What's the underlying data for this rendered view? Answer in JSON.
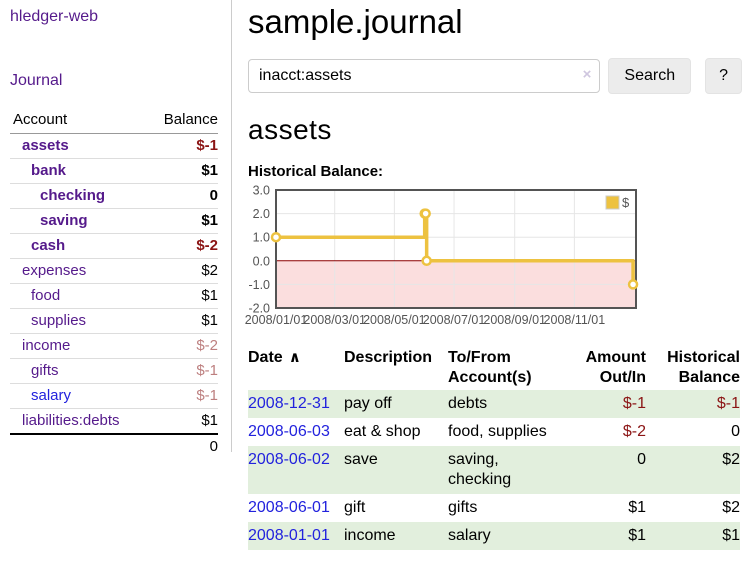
{
  "sidebar": {
    "app_title": "hledger-web",
    "journal_link": "Journal",
    "accounts": {
      "header_account": "Account",
      "header_balance": "Balance",
      "rows": [
        {
          "name": "assets",
          "indent": 0,
          "bold": true,
          "link_color": "purple",
          "balance": "$-1",
          "balance_style": "negative"
        },
        {
          "name": "bank",
          "indent": 1,
          "bold": true,
          "link_color": "purple",
          "balance": "$1",
          "balance_style": "normal"
        },
        {
          "name": "checking",
          "indent": 2,
          "bold": true,
          "link_color": "purple",
          "balance": "0",
          "balance_style": "normal"
        },
        {
          "name": "saving",
          "indent": 2,
          "bold": true,
          "link_color": "purple",
          "balance": "$1",
          "balance_style": "normal"
        },
        {
          "name": "cash",
          "indent": 1,
          "bold": true,
          "link_color": "purple",
          "balance": "$-2",
          "balance_style": "negative"
        },
        {
          "name": "expenses",
          "indent": 0,
          "bold": false,
          "link_color": "purple",
          "balance": "$2",
          "balance_style": "normal"
        },
        {
          "name": "food",
          "indent": 1,
          "bold": false,
          "link_color": "purple",
          "balance": "$1",
          "balance_style": "normal"
        },
        {
          "name": "supplies",
          "indent": 1,
          "bold": false,
          "link_color": "purple",
          "balance": "$1",
          "balance_style": "normal"
        },
        {
          "name": "income",
          "indent": 0,
          "bold": false,
          "link_color": "purple",
          "balance": "$-2",
          "balance_style": "faded-negative"
        },
        {
          "name": "gifts",
          "indent": 1,
          "bold": false,
          "link_color": "purple",
          "balance": "$-1",
          "balance_style": "faded-negative"
        },
        {
          "name": "salary",
          "indent": 1,
          "bold": false,
          "link_color": "blue",
          "balance": "$-1",
          "balance_style": "faded-negative"
        },
        {
          "name": "liabilities:debts",
          "indent": 0,
          "bold": false,
          "link_color": "purple",
          "balance": "$1",
          "balance_style": "normal"
        }
      ],
      "total": "0"
    }
  },
  "header": {
    "title": "sample.journal"
  },
  "search": {
    "value": "inacct:assets",
    "clear_icon": "×",
    "button_label": "Search",
    "help_label": "?"
  },
  "account_page": {
    "heading": "assets",
    "chart_title": "Historical Balance:"
  },
  "chart_data": {
    "type": "line",
    "style": "step",
    "title": "Historical Balance",
    "series": [
      {
        "name": "$",
        "color": "#edc240",
        "points": [
          [
            "2008-01-01",
            1
          ],
          [
            "2008-06-01",
            2
          ],
          [
            "2008-06-02",
            2
          ],
          [
            "2008-06-03",
            0
          ],
          [
            "2008-12-31",
            -1
          ]
        ]
      }
    ],
    "x_range": [
      "2008-01-01",
      "2009-01-03"
    ],
    "ylim": [
      -2,
      3
    ],
    "x_tick_dates": [
      "2008-01-01",
      "2008-03-01",
      "2008-05-01",
      "2008-07-01",
      "2008-09-01",
      "2008-11-01"
    ],
    "x_tick_labels": [
      "2008/01/01",
      "2008/03/01",
      "2008/05/01",
      "2008/07/01",
      "2008/09/01",
      "2008/11/01"
    ],
    "y_tick_values": [
      3,
      2,
      1,
      0,
      -1,
      -2
    ],
    "y_tick_labels": [
      "3.0",
      "2.0",
      "1.0",
      "0.0",
      "-1.0",
      "-2.0"
    ],
    "legend": {
      "label": "$",
      "position": "top-right"
    },
    "grid": true,
    "colors": {
      "line": "#edc240",
      "point_fill": "#ffffff",
      "negative_region": "#fbdede",
      "zero_line": "#8b0000",
      "grid": "#e6e6e6",
      "border": "#545454",
      "tick_text": "#545454",
      "legend_box_border": "#cccccc"
    }
  },
  "register": {
    "headers": {
      "date": "Date",
      "sort_icon": "∧",
      "description": "Description",
      "accounts": "To/From Account(s)",
      "amount": "Amount Out/In",
      "balance": "Historical Balance"
    },
    "rows": [
      {
        "date": "2008-12-31",
        "description": "pay off",
        "accounts": "debts",
        "amount": "$-1",
        "amount_negative": true,
        "balance": "$-1",
        "balance_negative": true,
        "highlighted": true
      },
      {
        "date": "2008-06-03",
        "description": "eat & shop",
        "accounts": "food, supplies",
        "amount": "$-2",
        "amount_negative": true,
        "balance": "0",
        "balance_negative": false,
        "highlighted": false
      },
      {
        "date": "2008-06-02",
        "description": "save",
        "accounts": "saving, checking",
        "amount": "0",
        "amount_negative": false,
        "balance": "$2",
        "balance_negative": false,
        "highlighted": true
      },
      {
        "date": "2008-06-01",
        "description": "gift",
        "accounts": "gifts",
        "amount": "$1",
        "amount_negative": false,
        "balance": "$2",
        "balance_negative": false,
        "highlighted": false
      },
      {
        "date": "2008-01-01",
        "description": "income",
        "accounts": "salary",
        "amount": "$1",
        "amount_negative": false,
        "balance": "$1",
        "balance_negative": false,
        "highlighted": true
      }
    ]
  },
  "colors": {
    "accent_purple": "#551a8b",
    "link_blue": "#2222dd",
    "negative": "#8b1414",
    "faded_negative": "#bd7f7f",
    "row_highlight": "#e2efdd"
  }
}
